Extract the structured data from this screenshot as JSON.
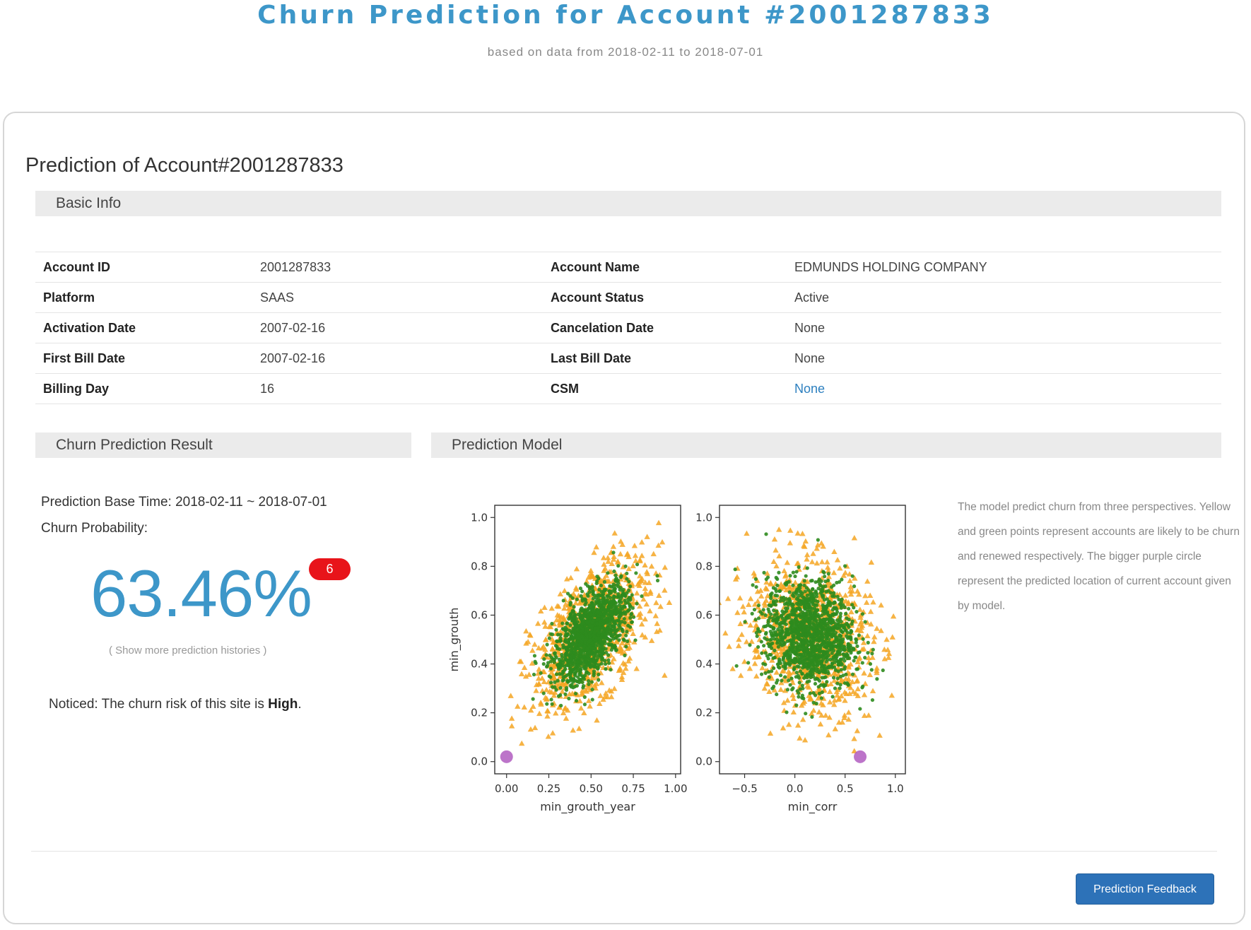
{
  "header": {
    "title": "Churn Prediction for Account #2001287833",
    "subtitle": "based on data from 2018-02-11 to 2018-07-01"
  },
  "card": {
    "title": "Prediction of Account#2001287833"
  },
  "basic_info": {
    "section_label": "Basic Info",
    "rows": [
      {
        "label1": "Account ID",
        "value1": "2001287833",
        "label2": "Account Name",
        "value2": "EDMUNDS HOLDING COMPANY"
      },
      {
        "label1": "Platform",
        "value1": "SAAS",
        "label2": "Account Status",
        "value2": "Active"
      },
      {
        "label1": "Activation Date",
        "value1": "2007-02-16",
        "label2": "Cancelation Date",
        "value2": "None"
      },
      {
        "label1": "First Bill Date",
        "value1": "2007-02-16",
        "label2": "Last Bill Date",
        "value2": "None"
      },
      {
        "label1": "Billing Day",
        "value1": "16",
        "label2": "CSM",
        "value2": "None"
      }
    ]
  },
  "result": {
    "section_label": "Churn Prediction Result",
    "base_time": "Prediction Base Time: 2018-02-11 ~ 2018-07-01",
    "prob_label": "Churn Probability:",
    "probability": "63.46%",
    "badge": "6",
    "history_link": "( Show more prediction histories )",
    "notice_prefix": "Noticed: The churn risk of this site is ",
    "notice_level": "High",
    "notice_suffix": "."
  },
  "model": {
    "section_label": "Prediction Model",
    "description": "The model predict churn from three perspectives. Yellow and green points represent accounts are likely to be churn and renewed respectively. The bigger purple circle represent the predicted location of current account given by model."
  },
  "footer": {
    "feedback_label": "Prediction Feedback"
  },
  "colors": {
    "accent": "#3d97c9",
    "churn_points": "#f5a623",
    "renew_points": "#2e8b1e",
    "current_account": "#b05cc0",
    "badge": "#e8141a",
    "button": "#2d72b8"
  },
  "chart_data": [
    {
      "type": "scatter",
      "xlabel": "min_grouth_year",
      "ylabel": "min_grouth",
      "xlim": [
        -0.07,
        1.03
      ],
      "ylim": [
        -0.05,
        1.05
      ],
      "xticks": [
        "0.00",
        "0.25",
        "0.50",
        "0.75",
        "1.00"
      ],
      "yticks": [
        "0.0",
        "0.2",
        "0.4",
        "0.6",
        "0.8",
        "1.0"
      ],
      "series": [
        {
          "marker": "triangle",
          "color": "#f5a623",
          "center": [
            0.5,
            0.52
          ],
          "spread": [
            0.17,
            0.15
          ],
          "corr": 0.55,
          "count": 950
        },
        {
          "marker": "dot",
          "color": "#2e8b1e",
          "center": [
            0.5,
            0.52
          ],
          "spread": [
            0.11,
            0.1
          ],
          "corr": 0.6,
          "count": 1400
        }
      ],
      "current_account": {
        "x": 0.0,
        "y": 0.02
      }
    },
    {
      "type": "scatter",
      "xlabel": "min_corr",
      "ylabel": "",
      "xlim": [
        -0.75,
        1.1
      ],
      "ylim": [
        -0.05,
        1.05
      ],
      "xticks": [
        "−0.5",
        "0.0",
        "0.5",
        "1.0"
      ],
      "yticks": [
        "0.0",
        "0.2",
        "0.4",
        "0.6",
        "0.8",
        "1.0"
      ],
      "series": [
        {
          "marker": "triangle",
          "color": "#f5a623",
          "center": [
            0.15,
            0.52
          ],
          "spread": [
            0.3,
            0.16
          ],
          "corr": -0.15,
          "count": 900
        },
        {
          "marker": "dot",
          "color": "#2e8b1e",
          "center": [
            0.15,
            0.52
          ],
          "spread": [
            0.22,
            0.11
          ],
          "corr": -0.1,
          "count": 1400
        }
      ],
      "current_account": {
        "x": 0.65,
        "y": 0.02
      }
    }
  ]
}
